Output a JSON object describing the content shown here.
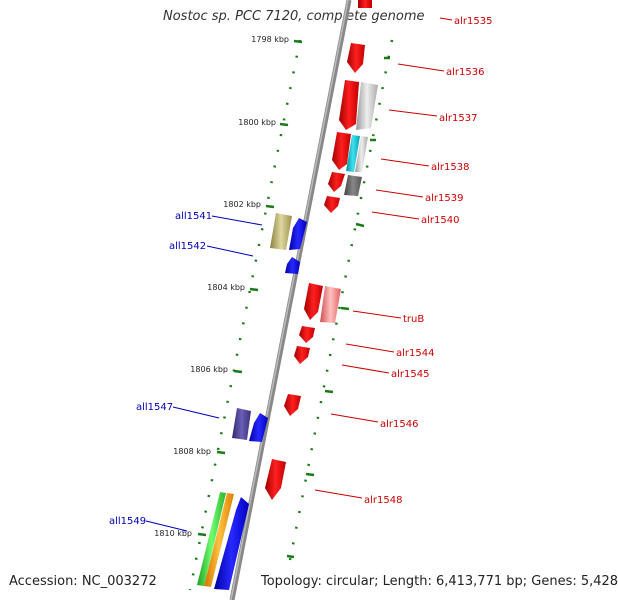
{
  "title": "Nostoc sp. PCC 7120, complete genome",
  "accession": "Accession: NC_003272",
  "topology": "Topology: circular; Length: 6,413,771 bp; Genes: 5,428",
  "colors": {
    "forward_label": "#cc0000",
    "reverse_label": "#0000bb",
    "tick": "#1a7a1a",
    "axis": "#888888"
  },
  "scale_ticks": [
    "1798 kbp",
    "1800 kbp",
    "1802 kbp",
    "1804 kbp",
    "1806 kbp",
    "1808 kbp",
    "1810 kbp"
  ],
  "forward_genes": [
    "alr1535",
    "alr1536",
    "alr1537",
    "alr1538",
    "alr1539",
    "alr1540",
    "truB",
    "alr1544",
    "alr1545",
    "alr1546",
    "alr1548"
  ],
  "reverse_genes": [
    "all1541",
    "all1542",
    "all1547",
    "all1549"
  ]
}
